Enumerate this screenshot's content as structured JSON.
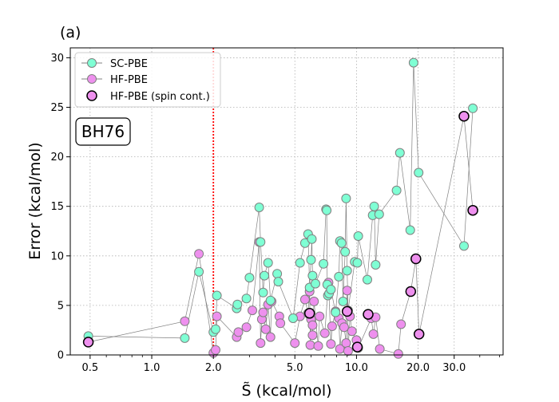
{
  "panel_label": "(a)",
  "dataset_label": "BH76",
  "colors": {
    "sc_fill": "#7fffd4",
    "hf_fill": "#ee90ee",
    "marker_edge": "#808080",
    "line": "#808080",
    "spin_edge": "#000000",
    "vline": "#ff0000",
    "grid": "#b0b0b0"
  },
  "chart_data": {
    "type": "scatter",
    "xlabel": "S̃ (kcal/mol)",
    "ylabel": "Error (kcal/mol)",
    "x_scale": "log",
    "xlim": [
      0.4,
      52
    ],
    "ylim": [
      0,
      31
    ],
    "x_ticks": [
      0.5,
      1.0,
      2.0,
      5.0,
      10.0,
      20.0,
      30.0
    ],
    "x_tick_labels": [
      "0.5",
      "1.0",
      "2.0",
      "5.0",
      "10.0",
      "20.0",
      "30.0"
    ],
    "y_ticks": [
      0,
      5,
      10,
      15,
      20,
      25,
      30
    ],
    "y_tick_labels": [
      "0",
      "5",
      "10",
      "15",
      "20",
      "25",
      "30"
    ],
    "grid": "on (dotted)",
    "legend_position": "top-left",
    "vline_x": 2.0,
    "series": [
      {
        "name": "SC-PBE",
        "points": [
          [
            0.49,
            1.9
          ],
          [
            1.45,
            1.7
          ],
          [
            1.7,
            8.4
          ],
          [
            2.0,
            2.3
          ],
          [
            2.05,
            2.6
          ],
          [
            2.08,
            6.0
          ],
          [
            2.6,
            4.7
          ],
          [
            2.62,
            5.1
          ],
          [
            2.9,
            5.7
          ],
          [
            3.0,
            7.8
          ],
          [
            3.35,
            14.9
          ],
          [
            3.4,
            11.4
          ],
          [
            3.5,
            6.3
          ],
          [
            3.55,
            8.0
          ],
          [
            3.7,
            9.3
          ],
          [
            3.8,
            5.5
          ],
          [
            4.1,
            8.2
          ],
          [
            4.15,
            7.4
          ],
          [
            4.9,
            3.7
          ],
          [
            5.3,
            9.3
          ],
          [
            5.6,
            11.3
          ],
          [
            5.8,
            12.2
          ],
          [
            5.9,
            6.8
          ],
          [
            6.0,
            9.6
          ],
          [
            6.05,
            11.7
          ],
          [
            6.1,
            8.0
          ],
          [
            6.3,
            7.2
          ],
          [
            6.9,
            9.2
          ],
          [
            7.1,
            14.7
          ],
          [
            7.15,
            14.6
          ],
          [
            7.2,
            7.1
          ],
          [
            7.25,
            6.0
          ],
          [
            7.35,
            6.2
          ],
          [
            7.5,
            6.6
          ],
          [
            7.9,
            4.3
          ],
          [
            8.2,
            7.9
          ],
          [
            8.3,
            11.5
          ],
          [
            8.45,
            11.3
          ],
          [
            8.6,
            5.4
          ],
          [
            8.8,
            10.4
          ],
          [
            8.9,
            15.8
          ],
          [
            9.0,
            8.5
          ],
          [
            9.1,
            4.5
          ],
          [
            9.8,
            9.4
          ],
          [
            10.1,
            9.3
          ],
          [
            10.2,
            12.0
          ],
          [
            11.3,
            7.6
          ],
          [
            12.0,
            14.1
          ],
          [
            12.2,
            15.0
          ],
          [
            12.4,
            9.1
          ],
          [
            12.9,
            14.2
          ],
          [
            15.7,
            16.6
          ],
          [
            16.3,
            20.4
          ],
          [
            18.3,
            12.6
          ],
          [
            19.0,
            29.5
          ],
          [
            20.1,
            18.4
          ],
          [
            33.5,
            11.0
          ],
          [
            37.0,
            24.9
          ]
        ]
      },
      {
        "name": "HF-PBE",
        "points": [
          [
            0.49,
            1.3
          ],
          [
            1.45,
            3.4
          ],
          [
            1.7,
            10.2
          ],
          [
            2.0,
            0.2
          ],
          [
            2.05,
            0.5
          ],
          [
            2.08,
            3.9
          ],
          [
            2.6,
            1.8
          ],
          [
            2.65,
            2.3
          ],
          [
            2.9,
            2.8
          ],
          [
            3.1,
            4.5
          ],
          [
            3.35,
            11.4
          ],
          [
            3.4,
            1.2
          ],
          [
            3.45,
            3.6
          ],
          [
            3.5,
            4.3
          ],
          [
            3.6,
            2.6
          ],
          [
            3.7,
            5.1
          ],
          [
            3.8,
            1.8
          ],
          [
            3.85,
            5.4
          ],
          [
            4.2,
            3.9
          ],
          [
            4.25,
            3.2
          ],
          [
            5.0,
            1.2
          ],
          [
            5.3,
            3.9
          ],
          [
            5.6,
            5.6
          ],
          [
            5.8,
            4.2
          ],
          [
            5.9,
            6.4
          ],
          [
            5.95,
            1.0
          ],
          [
            6.0,
            3.6
          ],
          [
            6.1,
            3.0
          ],
          [
            6.1,
            2.0
          ],
          [
            6.2,
            5.4
          ],
          [
            6.5,
            0.9
          ],
          [
            6.6,
            3.9
          ],
          [
            7.0,
            2.2
          ],
          [
            7.3,
            7.3
          ],
          [
            7.5,
            1.1
          ],
          [
            7.6,
            2.9
          ],
          [
            7.9,
            4.4
          ],
          [
            8.2,
            3.7
          ],
          [
            8.3,
            0.6
          ],
          [
            8.5,
            3.2
          ],
          [
            8.7,
            2.8
          ],
          [
            8.9,
            1.2
          ],
          [
            9.0,
            6.5
          ],
          [
            9.1,
            0.4
          ],
          [
            9.3,
            3.9
          ],
          [
            9.5,
            2.4
          ],
          [
            10.0,
            1.5
          ],
          [
            10.2,
            0.7
          ],
          [
            11.8,
            3.7
          ],
          [
            12.1,
            2.1
          ],
          [
            12.4,
            3.8
          ],
          [
            13.0,
            0.6
          ],
          [
            16.0,
            0.1
          ],
          [
            16.5,
            3.1
          ],
          [
            18.4,
            6.4
          ],
          [
            19.5,
            9.7
          ],
          [
            20.2,
            2.1
          ],
          [
            33.5,
            24.1
          ],
          [
            37.0,
            14.6
          ]
        ]
      },
      {
        "name": "HF-PBE (spin cont.)",
        "points": [
          [
            0.49,
            1.3
          ],
          [
            5.9,
            4.2
          ],
          [
            9.0,
            4.4
          ],
          [
            10.1,
            0.8
          ],
          [
            11.4,
            4.1
          ],
          [
            18.4,
            6.4
          ],
          [
            19.5,
            9.7
          ],
          [
            20.2,
            2.1
          ],
          [
            33.5,
            24.1
          ],
          [
            37.0,
            14.6
          ]
        ]
      }
    ]
  }
}
